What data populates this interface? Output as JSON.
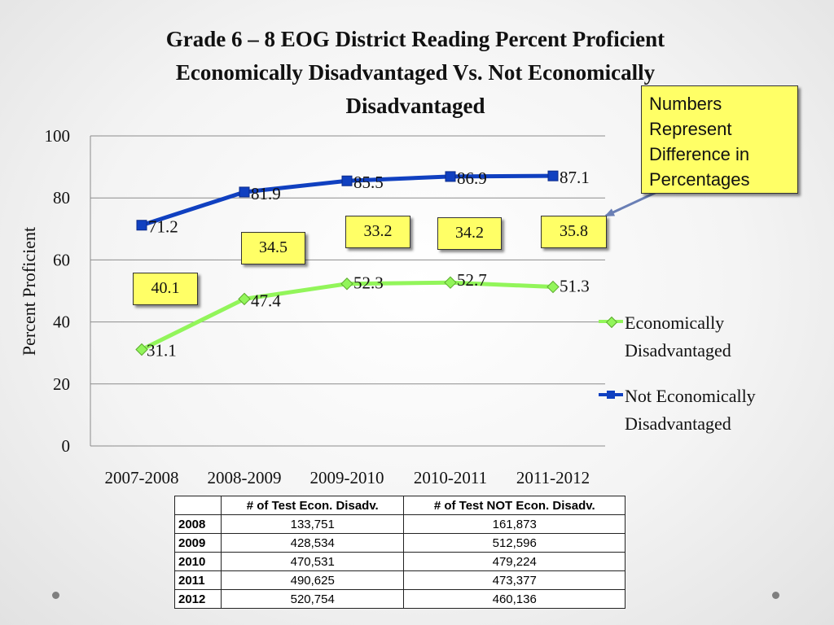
{
  "chart_data": {
    "type": "line",
    "title": "Grade 6 – 8 EOG District Reading Percent Proficient Economically Disadvantaged Vs. Not Economically Disadvantaged",
    "ylabel": "Percent Proficient",
    "xlabel": "",
    "categories": [
      "2007-2008",
      "2008-2009",
      "2009-2010",
      "2010-2011",
      "2011-2012"
    ],
    "ylim": [
      0,
      100
    ],
    "yticks": [
      "0",
      "20",
      "40",
      "60",
      "80",
      "100"
    ],
    "grid": true,
    "legend_position": "right",
    "series": [
      {
        "name": "Economically Disadvantaged",
        "values": [
          31.1,
          47.4,
          52.3,
          52.7,
          51.3
        ],
        "labels": [
          "31.1",
          "47.4",
          "52.3",
          "52.7",
          "51.3"
        ],
        "color": "#92f55a",
        "marker": "diamond"
      },
      {
        "name": "Not Economically Disadvantaged",
        "values": [
          71.2,
          81.9,
          85.5,
          86.9,
          87.1
        ],
        "labels": [
          "71.2",
          "81.9",
          "85.5",
          "86.9",
          "87.1"
        ],
        "color": "#1040c0",
        "marker": "square"
      }
    ],
    "differences": [
      "40.1",
      "34.5",
      "33.2",
      "34.2",
      "35.8"
    ]
  },
  "title_lines": [
    "Grade 6 – 8 EOG District Reading Percent Proficient",
    "Economically Disadvantaged Vs. Not Economically",
    "Disadvantaged"
  ],
  "callout": {
    "lines": [
      "Numbers",
      "Represent",
      "Difference in",
      "Percentages"
    ]
  },
  "legend": {
    "econ_label_lines": [
      "Economically",
      "Disadvantaged"
    ],
    "not_econ_label_lines": [
      "Not Economically",
      "Disadvantaged"
    ]
  },
  "table": {
    "headers": [
      "",
      "# of Test Econ. Disadv.",
      "# of Test NOT Econ. Disadv."
    ],
    "rows": [
      [
        "2008",
        "133,751",
        "161,873"
      ],
      [
        "2009",
        "428,534",
        "512,596"
      ],
      [
        "2010",
        "470,531",
        "479,224"
      ],
      [
        "2011",
        "490,625",
        "473,377"
      ],
      [
        "2012",
        "520,754",
        "460,136"
      ]
    ]
  }
}
